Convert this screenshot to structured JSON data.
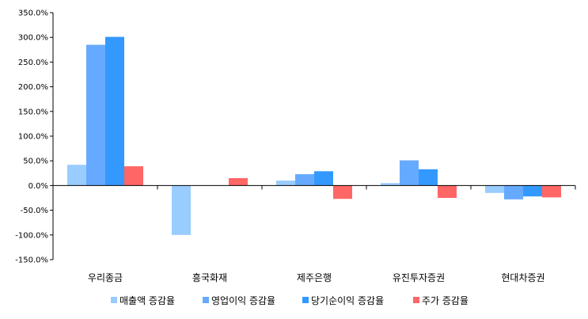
{
  "chart_data": {
    "type": "bar",
    "categories": [
      "우리종금",
      "흥국화재",
      "제주은행",
      "유진투자증권",
      "현대차증권"
    ],
    "series": [
      {
        "name": "매출액 증감율",
        "color": "#99ccff",
        "values": [
          42,
          -100,
          10,
          5,
          -15
        ]
      },
      {
        "name": "영업이익 증감율",
        "color": "#66aaff",
        "values": [
          285,
          0,
          23,
          51,
          -28
        ]
      },
      {
        "name": "당기순이익 증감율",
        "color": "#3399ff",
        "values": [
          301,
          0,
          29,
          33,
          -22
        ]
      },
      {
        "name": "주가 증감율",
        "color": "#ff6666",
        "values": [
          39,
          15,
          -27,
          -25,
          -24
        ]
      }
    ],
    "y_ticks": [
      "350.0%",
      "300.0%",
      "250.0%",
      "200.0%",
      "150.0%",
      "100.0%",
      "50.0%",
      "0.0%",
      "-50.0%",
      "-100.0%",
      "-150.0%"
    ],
    "ylim": [
      -150,
      350
    ],
    "ylabel_unit": "%",
    "grid": false,
    "legend_position": "bottom"
  }
}
